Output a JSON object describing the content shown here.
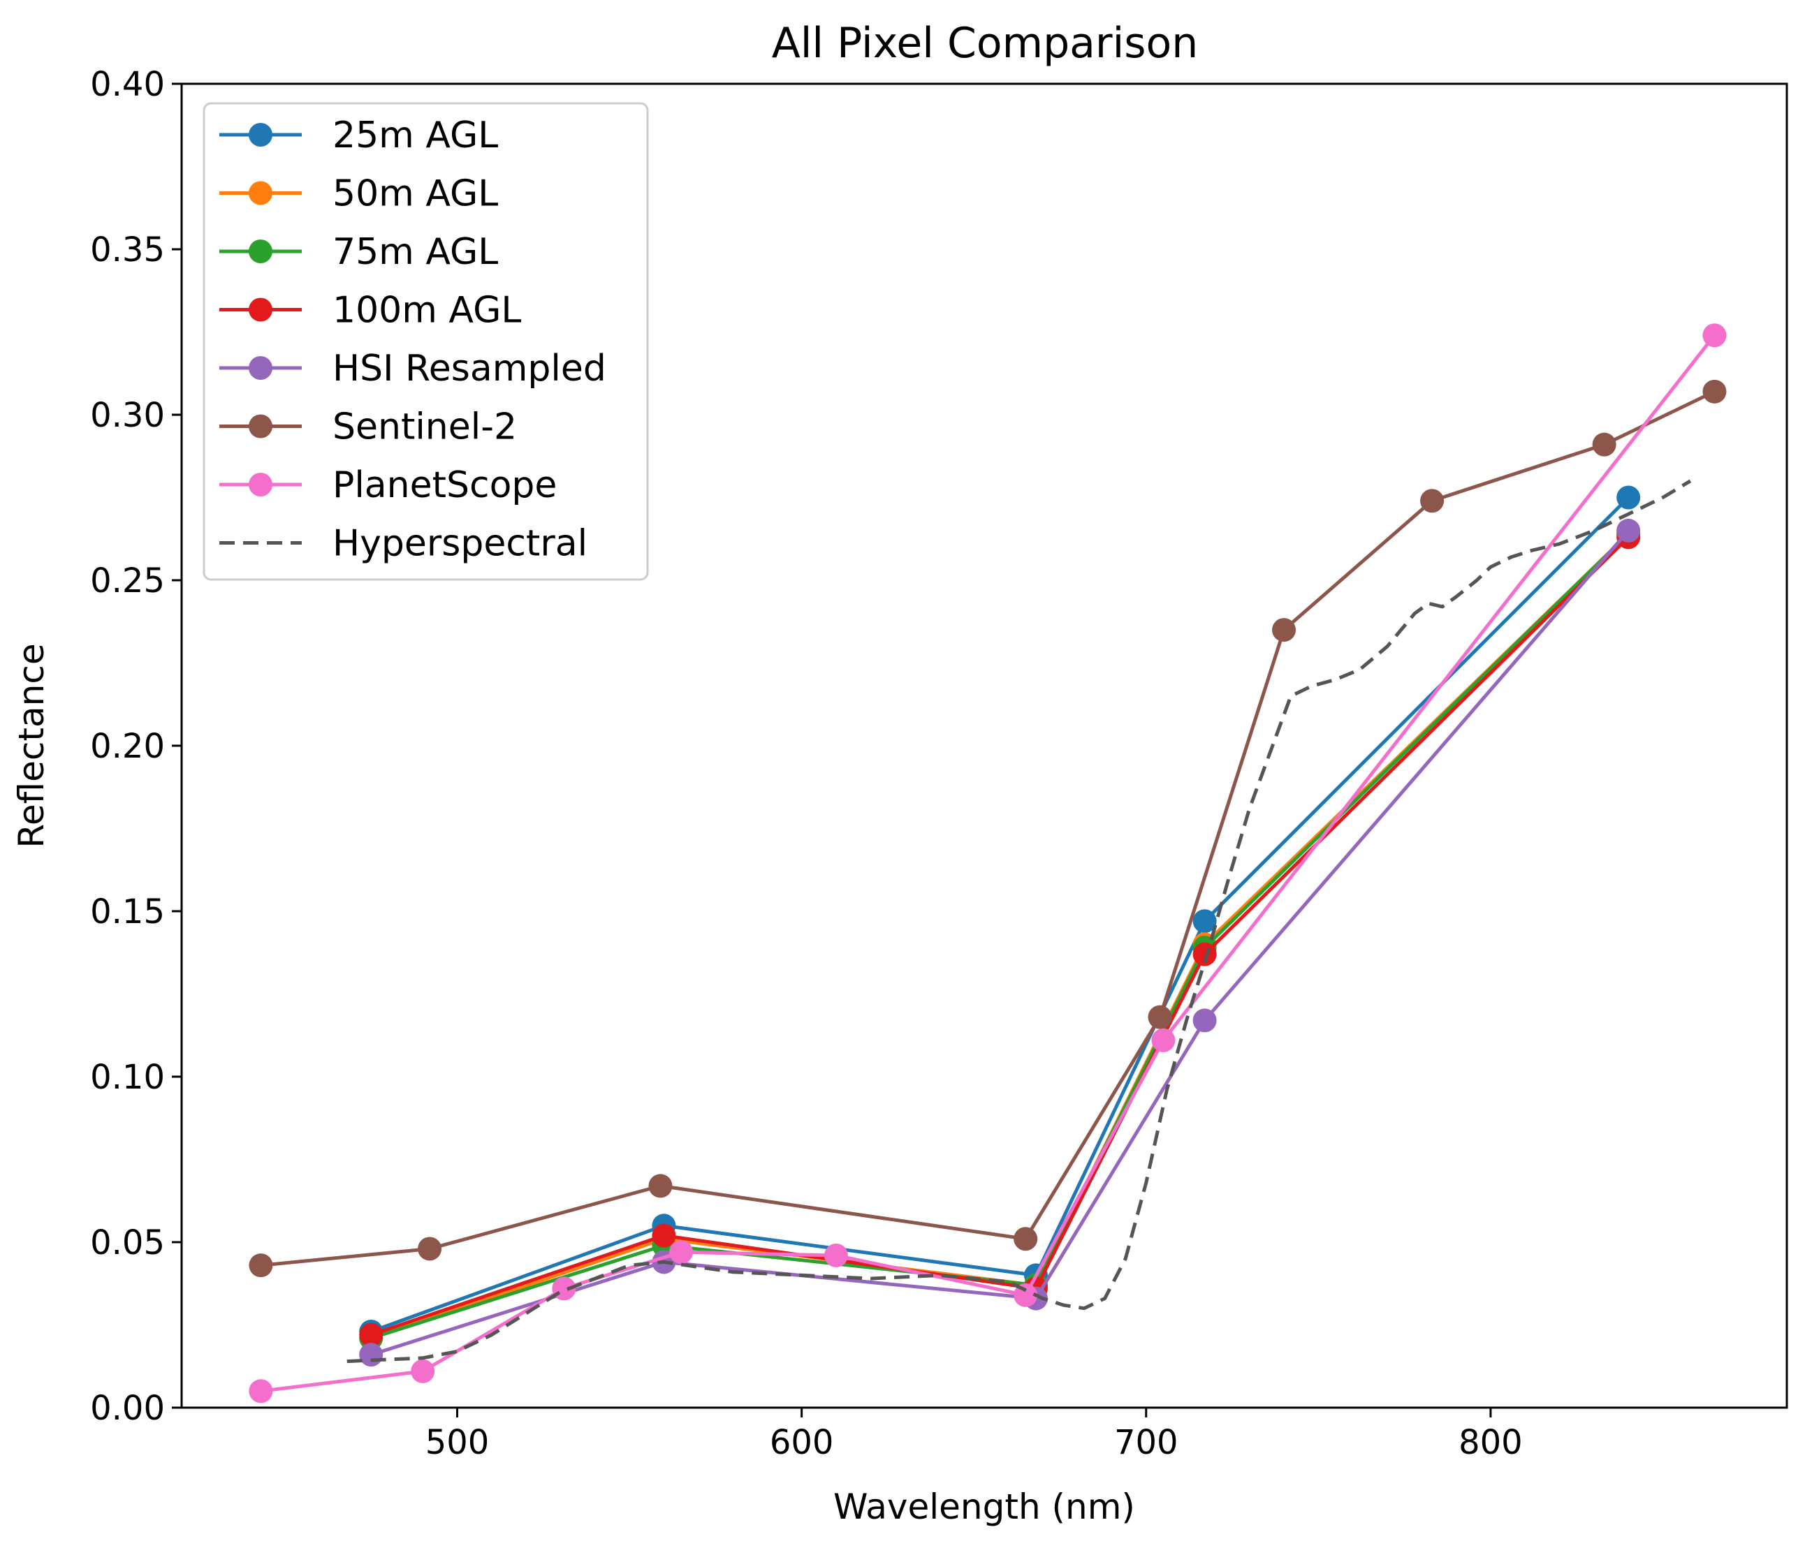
{
  "chart_data": {
    "type": "line",
    "title": "All Pixel Comparison",
    "xlabel": "Wavelength (nm)",
    "ylabel": "Reflectance",
    "xlim": [
      420,
      886
    ],
    "ylim": [
      0.0,
      0.4
    ],
    "xticks": [
      500,
      600,
      700,
      800
    ],
    "xtick_labels": [
      "500",
      "600",
      "700",
      "800"
    ],
    "yticks": [
      0.0,
      0.05,
      0.1,
      0.15,
      0.2,
      0.25,
      0.3,
      0.35,
      0.4
    ],
    "ytick_labels": [
      "0.00",
      "0.05",
      "0.10",
      "0.15",
      "0.20",
      "0.25",
      "0.30",
      "0.35",
      "0.40"
    ],
    "grid": false,
    "legend_position": "top-left",
    "series": [
      {
        "name": "25m AGL",
        "color": "#1f77b4",
        "style": "solid-marker",
        "x": [
          475,
          560,
          668,
          717,
          840
        ],
        "y": [
          0.023,
          0.055,
          0.04,
          0.147,
          0.275
        ]
      },
      {
        "name": "50m AGL",
        "color": "#ff7f0e",
        "style": "solid-marker",
        "x": [
          475,
          560,
          668,
          717,
          840
        ],
        "y": [
          0.021,
          0.051,
          0.037,
          0.14,
          0.264
        ]
      },
      {
        "name": "75m AGL",
        "color": "#2ca02c",
        "style": "solid-marker",
        "x": [
          475,
          560,
          668,
          717,
          840
        ],
        "y": [
          0.021,
          0.049,
          0.037,
          0.139,
          0.264
        ]
      },
      {
        "name": "100m AGL",
        "color": "#e31a1c",
        "style": "solid-marker",
        "x": [
          475,
          560,
          668,
          717,
          840
        ],
        "y": [
          0.022,
          0.052,
          0.036,
          0.137,
          0.263
        ]
      },
      {
        "name": "HSI Resampled",
        "color": "#9467bd",
        "style": "solid-marker",
        "x": [
          475,
          560,
          668,
          717,
          840
        ],
        "y": [
          0.016,
          0.044,
          0.033,
          0.117,
          0.265
        ]
      },
      {
        "name": "Sentinel-2",
        "color": "#8c564b",
        "style": "solid-marker",
        "x": [
          443,
          492,
          559,
          665,
          704,
          740,
          783,
          833,
          865
        ],
        "y": [
          0.043,
          0.048,
          0.067,
          0.051,
          0.118,
          0.235,
          0.274,
          0.291,
          0.307
        ]
      },
      {
        "name": "PlanetScope",
        "color": "#f46fcb",
        "style": "solid-marker",
        "x": [
          443,
          490,
          531,
          565,
          610,
          665,
          705,
          865
        ],
        "y": [
          0.005,
          0.011,
          0.036,
          0.047,
          0.046,
          0.034,
          0.111,
          0.324
        ]
      },
      {
        "name": "Hyperspectral",
        "color": "#555555",
        "style": "dashed",
        "x": [
          468,
          490,
          500,
          510,
          530,
          550,
          560,
          580,
          600,
          620,
          640,
          660,
          670,
          676,
          682,
          688,
          694,
          700,
          706,
          712,
          718,
          724,
          730,
          736,
          742,
          748,
          755,
          762,
          770,
          778,
          782,
          786,
          790,
          796,
          800,
          806,
          812,
          820,
          830,
          840,
          850,
          858
        ],
        "y": [
          0.014,
          0.015,
          0.017,
          0.022,
          0.035,
          0.043,
          0.044,
          0.041,
          0.04,
          0.039,
          0.04,
          0.038,
          0.033,
          0.031,
          0.03,
          0.033,
          0.045,
          0.068,
          0.096,
          0.118,
          0.138,
          0.16,
          0.181,
          0.198,
          0.215,
          0.218,
          0.22,
          0.223,
          0.23,
          0.24,
          0.243,
          0.242,
          0.245,
          0.25,
          0.254,
          0.257,
          0.259,
          0.261,
          0.265,
          0.27,
          0.275,
          0.28
        ]
      }
    ]
  }
}
